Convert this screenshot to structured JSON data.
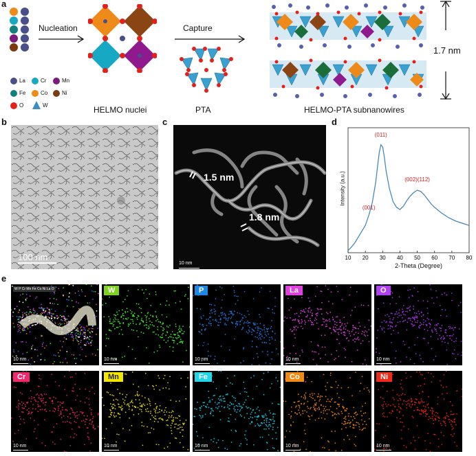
{
  "panel_labels": {
    "a": "a",
    "b": "b",
    "c": "c",
    "d": "d",
    "e": "e"
  },
  "panel_a": {
    "arrow1_label": "Nucleation",
    "arrow2_label": "Capture",
    "caption_nuclei": "HELMO nuclei",
    "caption_pta": "PTA",
    "caption_wires": "HELMO-PTA subnanowires",
    "height_label": "1.7 nm",
    "legend": [
      {
        "label": "La",
        "color": "#4a4f8a"
      },
      {
        "label": "Cr",
        "color": "#17a9c4"
      },
      {
        "label": "Mn",
        "color": "#7b1a7c"
      },
      {
        "label": "Fe",
        "color": "#138080"
      },
      {
        "label": "Co",
        "color": "#ee8a1a"
      },
      {
        "label": "Ni",
        "color": "#7b3a10"
      },
      {
        "label": "O",
        "color": "#e3201b"
      },
      {
        "label": "W",
        "color": "#3a8fc4"
      }
    ]
  },
  "panel_b": {
    "scale_label": "100 nm"
  },
  "panel_c": {
    "label1": "1.5 nm",
    "label2": "1.8 nm",
    "scale_label": "10 nm"
  },
  "panel_d": {
    "chart_data": {
      "type": "line",
      "xlabel": "2-Theta (Degree)",
      "ylabel": "Intensity (a.u.)",
      "xlim": [
        10,
        80
      ],
      "xticks": [
        10,
        20,
        30,
        40,
        50,
        60,
        70,
        80
      ],
      "series_color": "#3b82b4",
      "x": [
        10,
        12,
        14,
        16,
        18,
        20,
        22,
        24,
        26,
        27,
        28,
        29,
        30,
        31,
        32,
        34,
        36,
        38,
        40,
        42,
        44,
        46,
        48,
        50,
        52,
        54,
        56,
        58,
        60,
        64,
        68,
        72,
        76,
        80
      ],
      "y": [
        0.02,
        0.05,
        0.09,
        0.14,
        0.19,
        0.24,
        0.33,
        0.44,
        0.62,
        0.75,
        0.88,
        0.95,
        0.93,
        0.84,
        0.72,
        0.56,
        0.45,
        0.4,
        0.38,
        0.41,
        0.46,
        0.5,
        0.53,
        0.55,
        0.54,
        0.51,
        0.47,
        0.43,
        0.4,
        0.35,
        0.31,
        0.28,
        0.26,
        0.24
      ],
      "annotations": [
        {
          "text": "(001)",
          "x": 22,
          "y": 0.38
        },
        {
          "text": "(011)",
          "x": 29,
          "y": 1.02
        },
        {
          "text": "(002)(112)",
          "x": 50,
          "y": 0.63
        }
      ],
      "annotation_color": "#d42020"
    }
  },
  "panel_e": {
    "maps": [
      {
        "label": "",
        "chip_color": "#ffffff",
        "dot_color": "#cccccc",
        "overlay": true,
        "overlay_legend": "W P Cr Mn Fe Co Ni La O"
      },
      {
        "label": "W",
        "chip_color": "#7ed321",
        "dot_color": "#3ddc2a"
      },
      {
        "label": "P",
        "chip_color": "#1e88e5",
        "dot_color": "#1e6fd0"
      },
      {
        "label": "La",
        "chip_color": "#e040e0",
        "dot_color": "#d23ad2"
      },
      {
        "label": "O",
        "chip_color": "#b040f0",
        "dot_color": "#9a30d8"
      },
      {
        "label": "Cr",
        "chip_color": "#f0286e",
        "dot_color": "#d81e5e"
      },
      {
        "label": "Mn",
        "chip_color": "#f2e600",
        "dot_color": "#d8cc10"
      },
      {
        "label": "Fe",
        "chip_color": "#22d6e8",
        "dot_color": "#18b8d0"
      },
      {
        "label": "Co",
        "chip_color": "#f08a14",
        "dot_color": "#e07810"
      },
      {
        "label": "Ni",
        "chip_color": "#ee2a18",
        "dot_color": "#d8200e"
      }
    ],
    "scale_label": "10 nm"
  }
}
